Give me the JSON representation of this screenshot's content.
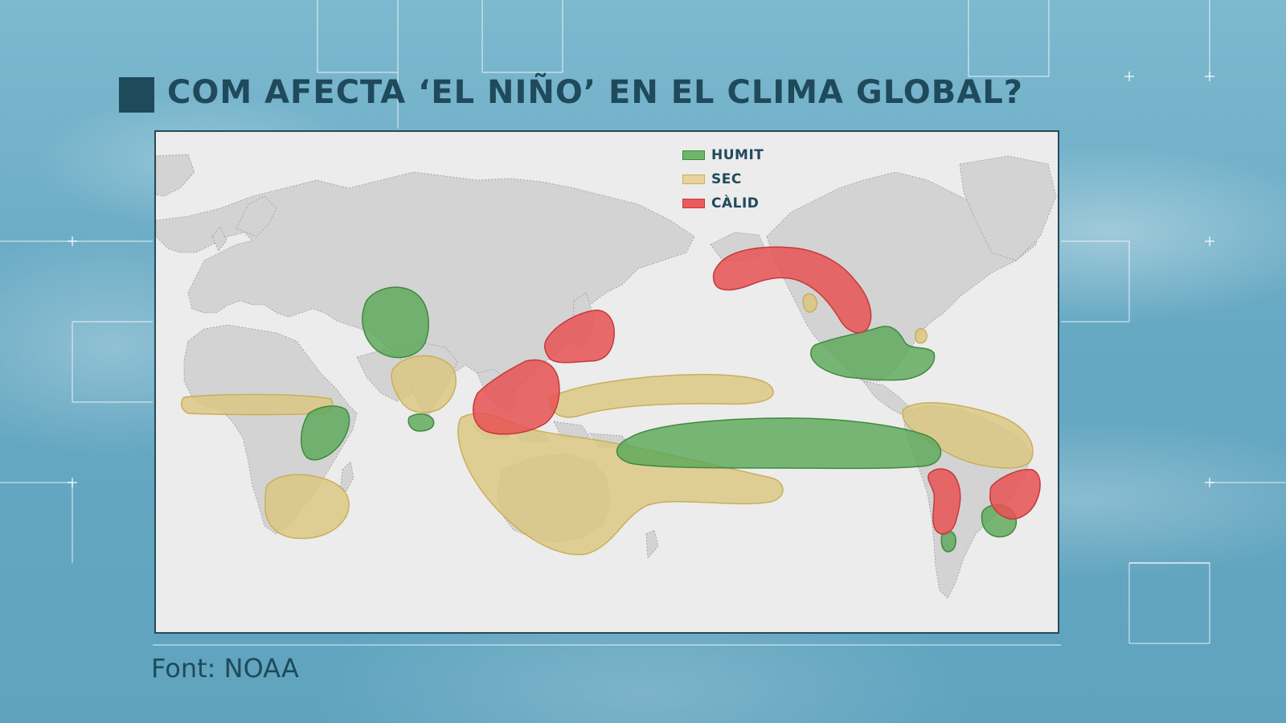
{
  "title": "COM AFECTA ‘EL NIÑO’ EN EL CLIMA GLOBAL?",
  "source": "Font: NOAA",
  "legend": {
    "items": [
      {
        "label": "HUMIT",
        "color": "#6fb56a"
      },
      {
        "label": "SEC",
        "color": "#e6d49a"
      },
      {
        "label": "CÀLID",
        "color": "#ea5a5c"
      }
    ]
  },
  "colors": {
    "title": "#1f4a5c",
    "humit_fill": "#5aa857",
    "sec_fill": "#dcc77e",
    "calid_fill": "#e85254",
    "land": "#d3d3d3",
    "ocean": "#ececec"
  },
  "icons": {
    "title_marker": "square-icon"
  }
}
